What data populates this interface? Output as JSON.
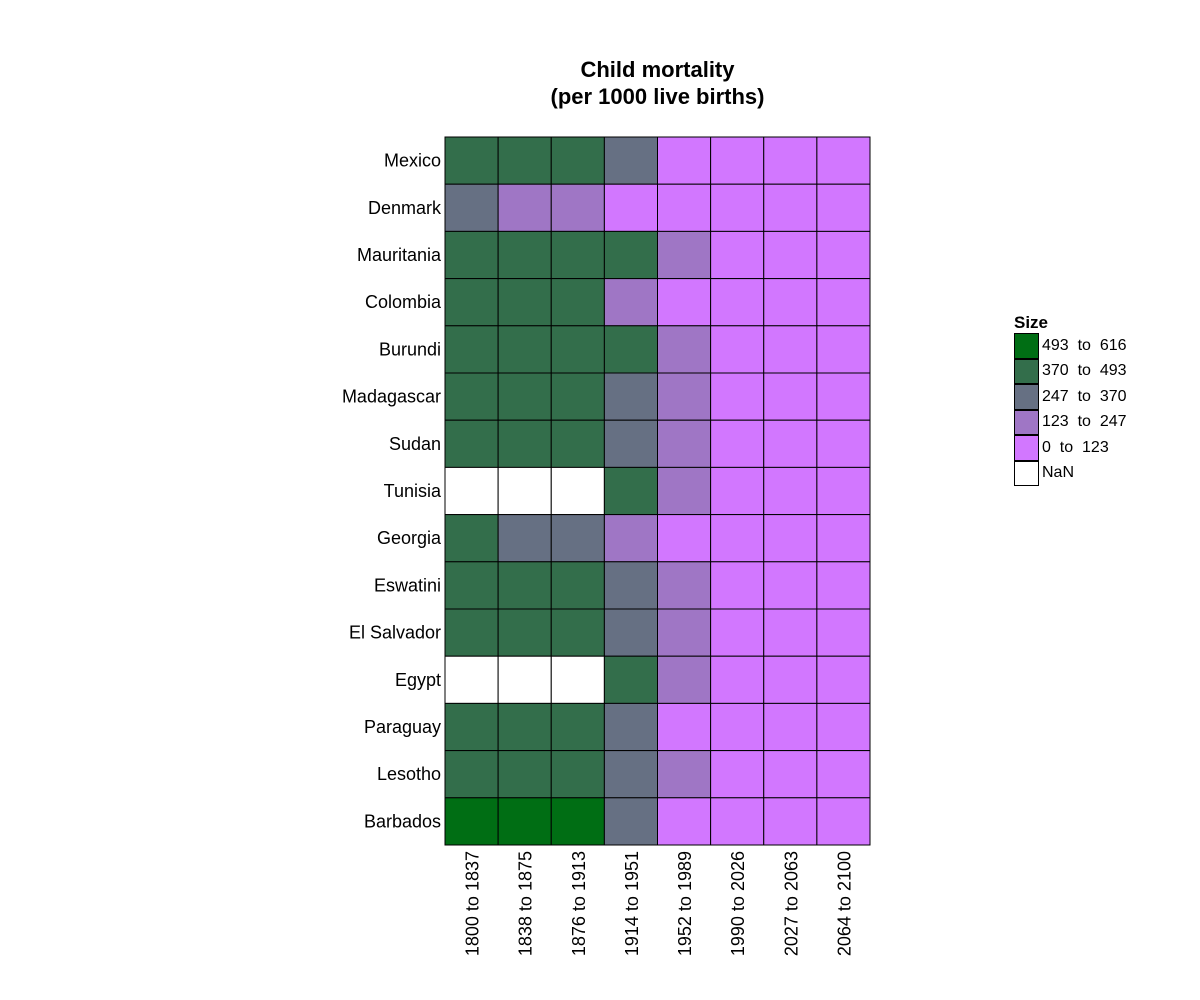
{
  "chart_data": {
    "type": "heatmap",
    "title": "Child mortality",
    "subtitle": "(per 1000 live births)",
    "rows": [
      "Mexico",
      "Denmark",
      "Mauritania",
      "Colombia",
      "Burundi",
      "Madagascar",
      "Sudan",
      "Tunisia",
      "Georgia",
      "Eswatini",
      "El Salvador",
      "Egypt",
      "Paraguay",
      "Lesotho",
      "Barbados"
    ],
    "columns": [
      "1800 to 1837",
      "1838 to 1875",
      "1876 to 1913",
      "1914 to 1951",
      "1952 to 1989",
      "1990 to 2026",
      "2027 to 2063",
      "2064 to 2100"
    ],
    "legend": {
      "title": "Size",
      "placement": "right",
      "bins": [
        {
          "label": "493  to  616",
          "color": "#006e14"
        },
        {
          "label": "370  to  493",
          "color": "#336e4b"
        },
        {
          "label": "247  to  370",
          "color": "#667083"
        },
        {
          "label": "123  to  247",
          "color": "#9f76c5"
        },
        {
          "label": "0  to  123",
          "color": "#d277ff"
        },
        {
          "label": "NaN",
          "color": "#ffffff"
        }
      ]
    },
    "cell_bins": [
      [
        "370  to  493",
        "370  to  493",
        "370  to  493",
        "247  to  370",
        "0  to  123",
        "0  to  123",
        "0  to  123",
        "0  to  123"
      ],
      [
        "247  to  370",
        "123  to  247",
        "123  to  247",
        "0  to  123",
        "0  to  123",
        "0  to  123",
        "0  to  123",
        "0  to  123"
      ],
      [
        "370  to  493",
        "370  to  493",
        "370  to  493",
        "370  to  493",
        "123  to  247",
        "0  to  123",
        "0  to  123",
        "0  to  123"
      ],
      [
        "370  to  493",
        "370  to  493",
        "370  to  493",
        "123  to  247",
        "0  to  123",
        "0  to  123",
        "0  to  123",
        "0  to  123"
      ],
      [
        "370  to  493",
        "370  to  493",
        "370  to  493",
        "370  to  493",
        "123  to  247",
        "0  to  123",
        "0  to  123",
        "0  to  123"
      ],
      [
        "370  to  493",
        "370  to  493",
        "370  to  493",
        "247  to  370",
        "123  to  247",
        "0  to  123",
        "0  to  123",
        "0  to  123"
      ],
      [
        "370  to  493",
        "370  to  493",
        "370  to  493",
        "247  to  370",
        "123  to  247",
        "0  to  123",
        "0  to  123",
        "0  to  123"
      ],
      [
        "NaN",
        "NaN",
        "NaN",
        "370  to  493",
        "123  to  247",
        "0  to  123",
        "0  to  123",
        "0  to  123"
      ],
      [
        "370  to  493",
        "247  to  370",
        "247  to  370",
        "123  to  247",
        "0  to  123",
        "0  to  123",
        "0  to  123",
        "0  to  123"
      ],
      [
        "370  to  493",
        "370  to  493",
        "370  to  493",
        "247  to  370",
        "123  to  247",
        "0  to  123",
        "0  to  123",
        "0  to  123"
      ],
      [
        "370  to  493",
        "370  to  493",
        "370  to  493",
        "247  to  370",
        "123  to  247",
        "0  to  123",
        "0  to  123",
        "0  to  123"
      ],
      [
        "NaN",
        "NaN",
        "NaN",
        "370  to  493",
        "123  to  247",
        "0  to  123",
        "0  to  123",
        "0  to  123"
      ],
      [
        "370  to  493",
        "370  to  493",
        "370  to  493",
        "247  to  370",
        "0  to  123",
        "0  to  123",
        "0  to  123",
        "0  to  123"
      ],
      [
        "370  to  493",
        "370  to  493",
        "370  to  493",
        "247  to  370",
        "123  to  247",
        "0  to  123",
        "0  to  123",
        "0  to  123"
      ],
      [
        "493  to  616",
        "493  to  616",
        "493  to  616",
        "247  to  370",
        "0  to  123",
        "0  to  123",
        "0  to  123",
        "0  to  123"
      ]
    ]
  }
}
